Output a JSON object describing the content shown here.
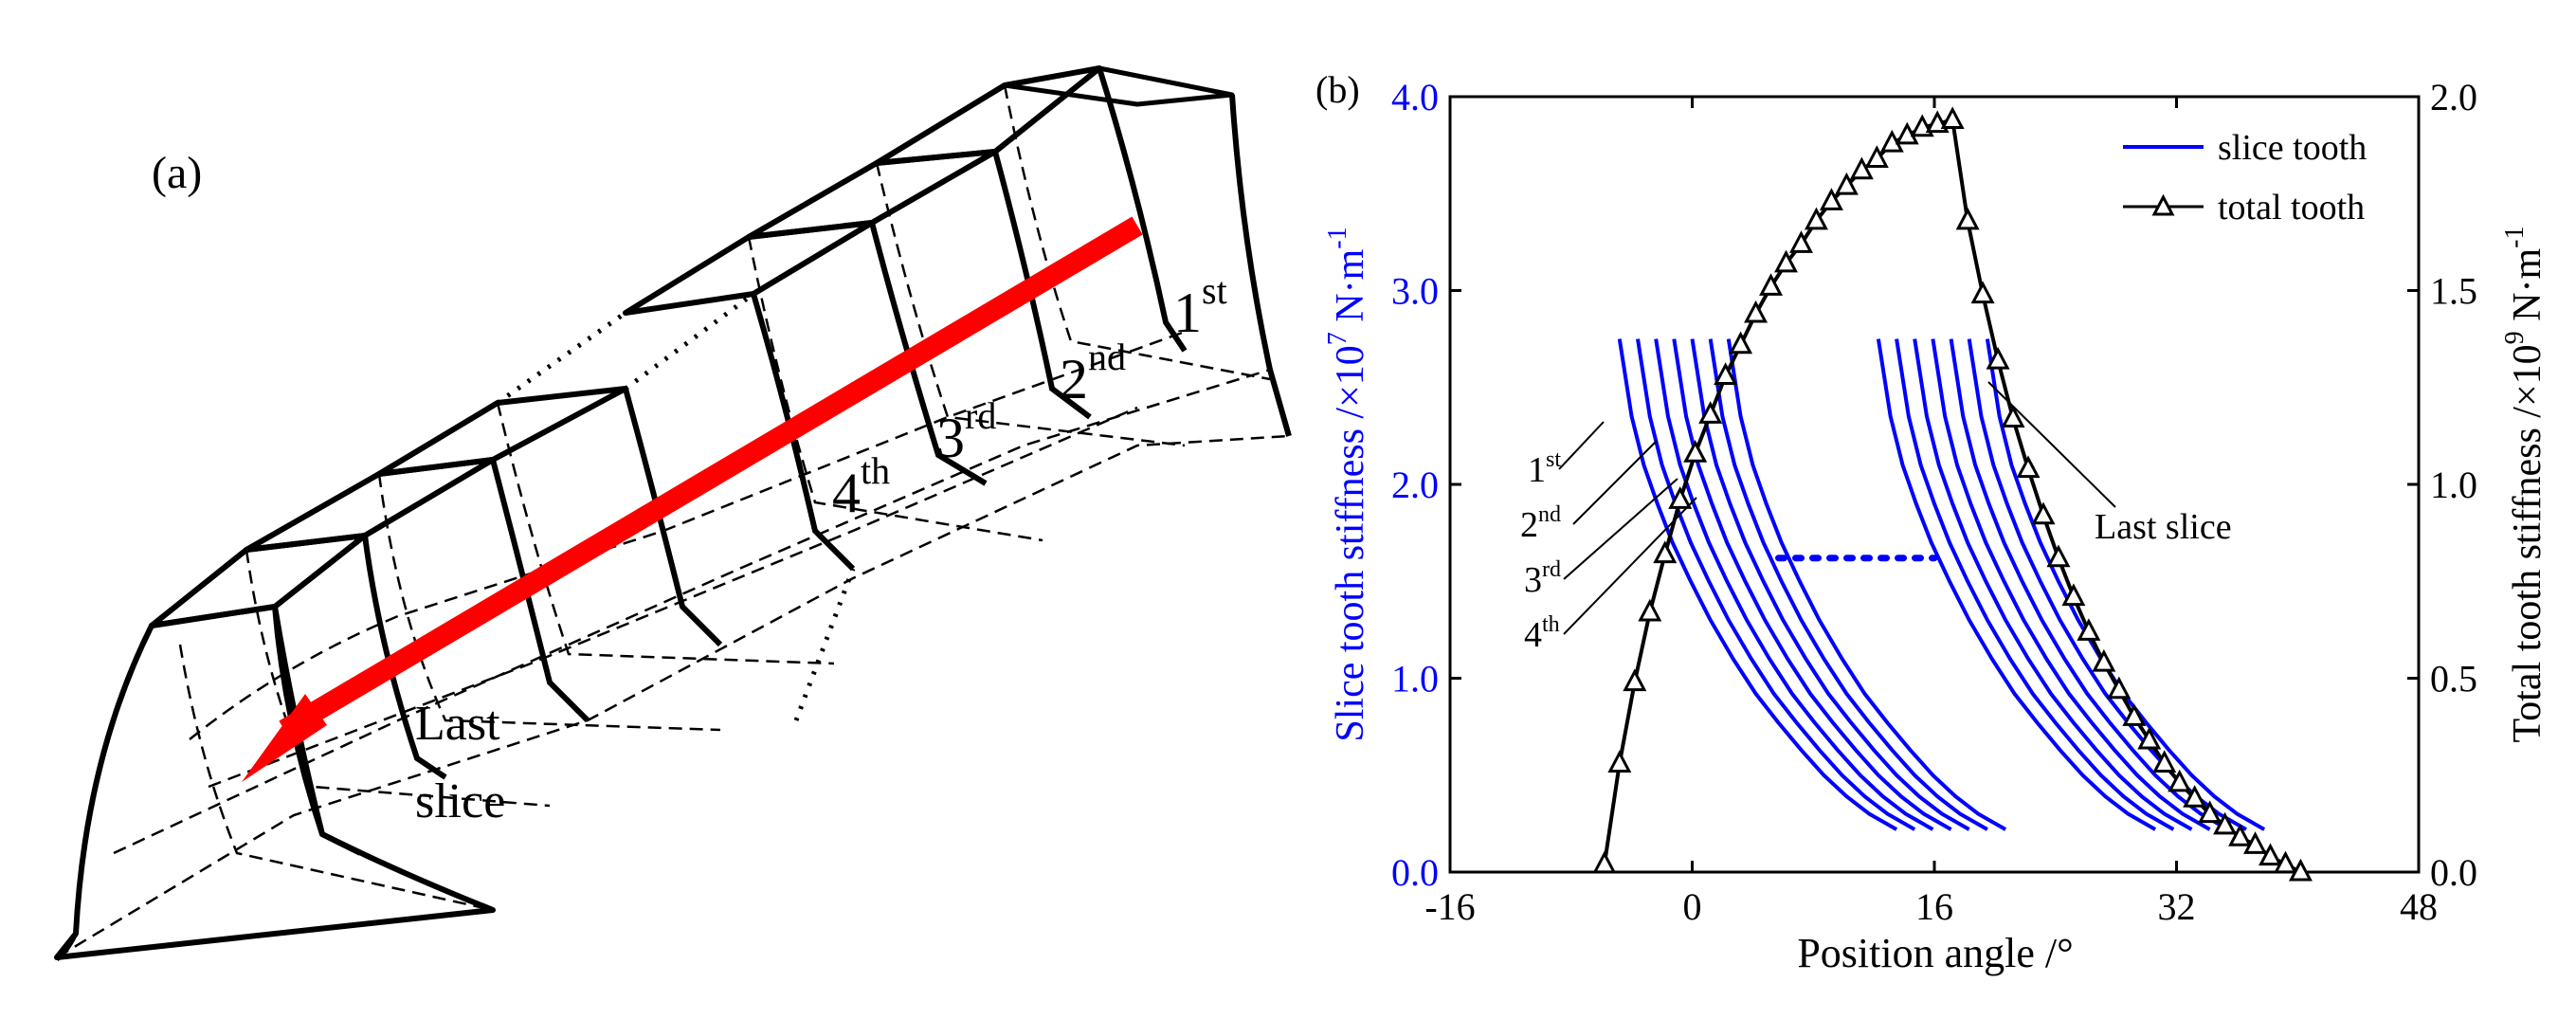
{
  "figure": {
    "panel_a": {
      "label": "(a)",
      "slice_labels": [
        {
          "base": "1",
          "sup": "st"
        },
        {
          "base": "2",
          "sup": "nd"
        },
        {
          "base": "3",
          "sup": "rd"
        },
        {
          "base": "4",
          "sup": "th"
        }
      ],
      "last_slice_line1": "Last",
      "last_slice_line2": "slice",
      "arrow_color": "#ff0000"
    },
    "panel_b": {
      "label": "(b)",
      "slice_markers": [
        {
          "base": "1",
          "sup": "st"
        },
        {
          "base": "2",
          "sup": "nd"
        },
        {
          "base": "3",
          "sup": "rd"
        },
        {
          "base": "4",
          "sup": "th"
        }
      ],
      "last_slice_label": "Last slice"
    }
  },
  "chart_data": {
    "type": "line",
    "title": "",
    "xlabel": "Position angle /°",
    "ylabel": {
      "prefix": "Slice tooth stiffness /×10",
      "exp": "7",
      "unit": " N·m",
      "unit_exp": "-1"
    },
    "y2label": {
      "prefix": "Total tooth stiffness /×10",
      "exp": "9",
      "unit": " N·m",
      "unit_exp": "-1"
    },
    "xlim": [
      -16,
      48
    ],
    "ylim": [
      0,
      4
    ],
    "y2lim": [
      0,
      2
    ],
    "xticks": [
      -16,
      0,
      16,
      32,
      48
    ],
    "xtick_labels": [
      "-16",
      "0",
      "16",
      "32",
      "48"
    ],
    "yticks": [
      0,
      1,
      2,
      3,
      4
    ],
    "ytick_labels": [
      "0.0",
      "1.0",
      "2.0",
      "3.0",
      "4.0"
    ],
    "y2ticks": [
      0,
      0.5,
      1,
      1.5,
      2
    ],
    "y2tick_labels": [
      "0.0",
      "0.5",
      "1.0",
      "1.5",
      "2.0"
    ],
    "legend": [
      {
        "name": "slice tooth",
        "color": "#0000ff",
        "marker": "none"
      },
      {
        "name": "total tooth",
        "color": "#000000",
        "marker": "triangle"
      }
    ],
    "legend_position": "top-right",
    "slice_color": "#0000ff",
    "total_color": "#000000",
    "slice_series": {
      "name": "slice tooth",
      "axis": "left",
      "count_per_group": 7,
      "offset_step": 1.2,
      "group_starts": [
        -4.8,
        12.3
      ],
      "profile_x": [
        0,
        0.8,
        1.6,
        2.5,
        3.5,
        4.7,
        6,
        7.5,
        9,
        10.5,
        12,
        13.5,
        15,
        16.5,
        18.3
      ],
      "profile_y": [
        2.75,
        2.35,
        2.1,
        1.9,
        1.7,
        1.5,
        1.3,
        1.1,
        0.92,
        0.77,
        0.63,
        0.5,
        0.39,
        0.3,
        0.22
      ]
    },
    "dotted_connector": {
      "x": [
        5.7,
        16
      ],
      "y": [
        1.62,
        1.62
      ]
    },
    "total_series": {
      "name": "total tooth",
      "axis": "right",
      "x": [
        -5.8,
        -4.8,
        -3.8,
        -2.8,
        -1.8,
        -0.8,
        0.2,
        1.2,
        2.2,
        3.2,
        4.2,
        5.2,
        6.2,
        7.2,
        8.2,
        9.2,
        10.2,
        11.2,
        12.2,
        13.2,
        14.2,
        15.2,
        16.2,
        17.2,
        18.2,
        19.2,
        20.2,
        21.2,
        22.2,
        23.2,
        24.2,
        25.2,
        26.2,
        27.2,
        28.2,
        29.2,
        30.2,
        31.2,
        32.2,
        33.2,
        34.2,
        35.2,
        36.2,
        37.2,
        38.2,
        39.2,
        40.2
      ],
      "y": [
        0.02,
        0.28,
        0.49,
        0.67,
        0.82,
        0.96,
        1.08,
        1.18,
        1.28,
        1.36,
        1.44,
        1.51,
        1.57,
        1.62,
        1.68,
        1.73,
        1.77,
        1.81,
        1.84,
        1.88,
        1.9,
        1.92,
        1.93,
        1.94,
        1.68,
        1.49,
        1.32,
        1.17,
        1.04,
        0.92,
        0.81,
        0.71,
        0.62,
        0.54,
        0.47,
        0.4,
        0.34,
        0.28,
        0.23,
        0.19,
        0.15,
        0.12,
        0.09,
        0.07,
        0.04,
        0.02,
        0.0
      ]
    }
  }
}
